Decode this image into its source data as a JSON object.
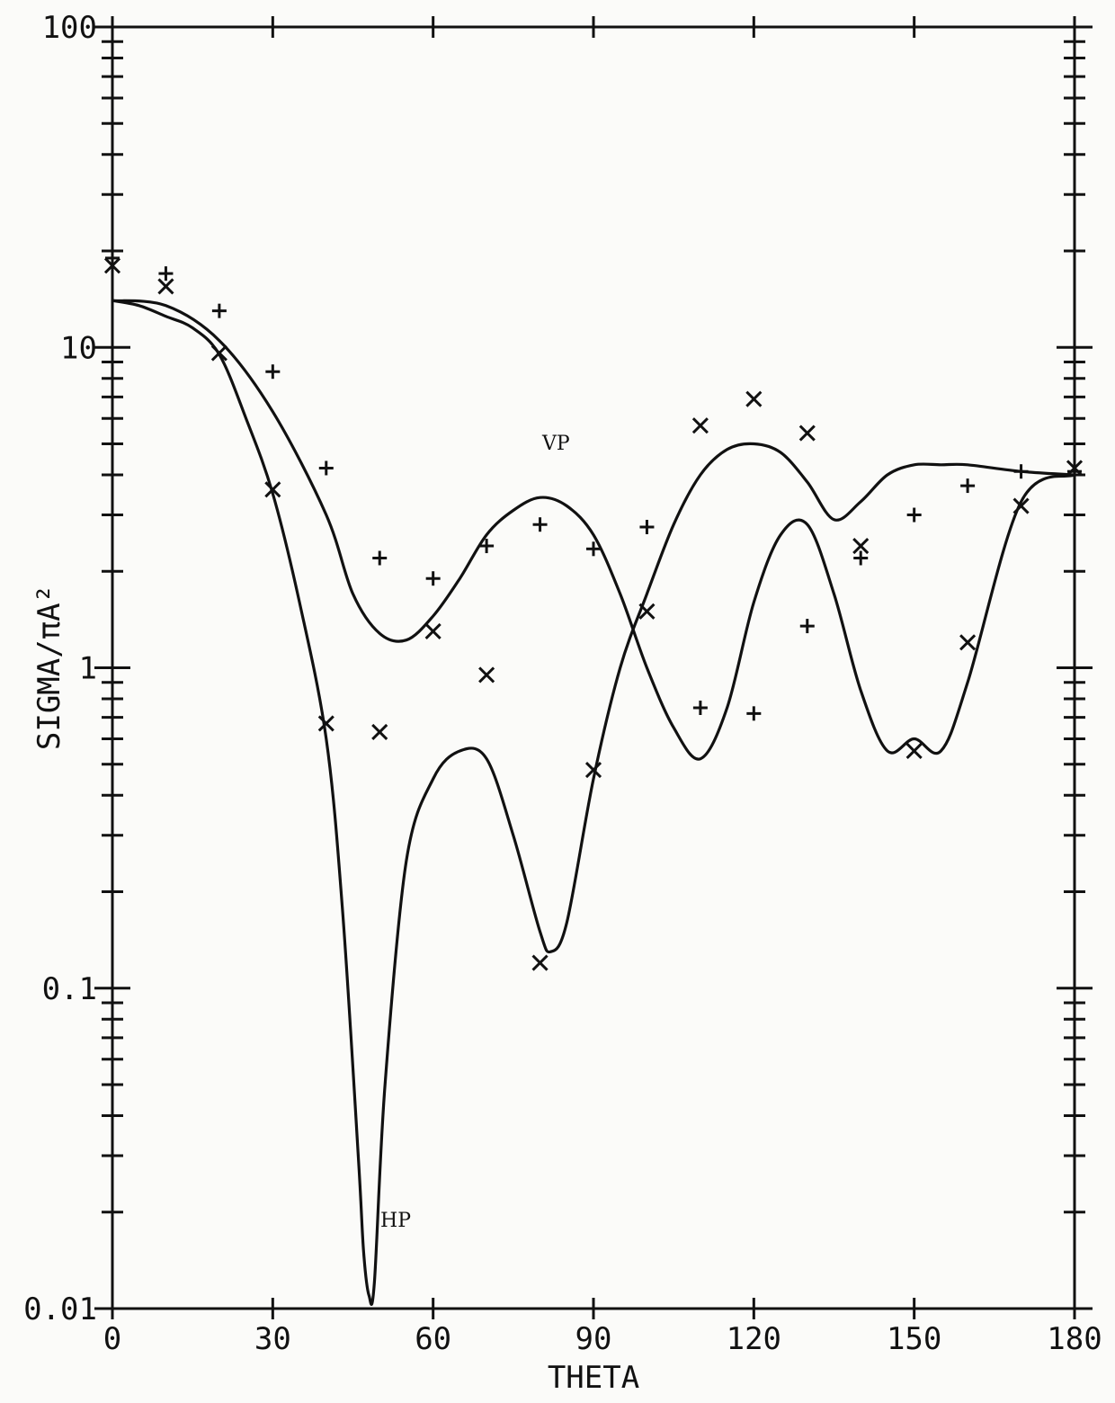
{
  "chart_data": {
    "type": "line",
    "xlabel": "THETA",
    "ylabel": "SIGMA/πA²",
    "xlim": [
      0,
      180
    ],
    "ylim": [
      0.01,
      100
    ],
    "y_scale": "log",
    "grid": false,
    "x_ticks": [
      0,
      30,
      60,
      90,
      120,
      150,
      180
    ],
    "x_tick_labels": [
      "0",
      "30",
      "60",
      "90",
      "120",
      "150",
      "180"
    ],
    "y_ticks": [
      0.01,
      0.1,
      1,
      10,
      100
    ],
    "y_tick_labels": [
      "0.01",
      "0.1",
      "1",
      "10",
      "100"
    ],
    "line_color": "#111111",
    "series": [
      {
        "name": "VP",
        "kind": "line",
        "x": [
          0,
          10,
          20,
          30,
          40,
          45,
          50,
          55,
          60,
          65,
          70,
          75,
          80,
          85,
          90,
          95,
          100,
          105,
          110,
          115,
          120,
          125,
          130,
          135,
          140,
          145,
          150,
          155,
          160,
          170,
          180
        ],
        "y": [
          14,
          13.5,
          10.5,
          6.3,
          3.0,
          1.7,
          1.28,
          1.22,
          1.45,
          1.9,
          2.6,
          3.1,
          3.4,
          3.2,
          2.6,
          1.7,
          1.0,
          0.65,
          0.52,
          0.75,
          1.6,
          2.6,
          2.8,
          1.7,
          0.85,
          0.55,
          0.6,
          0.55,
          0.9,
          3.3,
          4.0
        ]
      },
      {
        "name": "HP",
        "kind": "line",
        "x": [
          0,
          5,
          10,
          15,
          20,
          25,
          30,
          35,
          40,
          43,
          46,
          47,
          48,
          49,
          51,
          55,
          60,
          65,
          70,
          75,
          80,
          82,
          85,
          90,
          95,
          100,
          105,
          110,
          115,
          120,
          125,
          130,
          135,
          140,
          145,
          150,
          155,
          160,
          170,
          180
        ],
        "y": [
          14,
          13.5,
          12.5,
          11.5,
          9.5,
          6.0,
          3.5,
          1.6,
          0.6,
          0.18,
          0.03,
          0.015,
          0.011,
          0.012,
          0.05,
          0.25,
          0.45,
          0.55,
          0.52,
          0.3,
          0.15,
          0.13,
          0.16,
          0.45,
          1.0,
          1.7,
          2.8,
          4.0,
          4.8,
          5.0,
          4.7,
          3.8,
          2.9,
          3.3,
          4.0,
          4.3,
          4.3,
          4.3,
          4.1,
          4.0
        ]
      },
      {
        "name": "",
        "kind": "marker",
        "marker": "plus",
        "x": [
          0,
          10,
          20,
          30,
          40,
          50,
          60,
          70,
          80,
          90,
          100,
          110,
          120,
          130,
          140,
          150,
          160,
          170,
          180
        ],
        "y": [
          19,
          17,
          13,
          8.4,
          4.2,
          2.2,
          1.9,
          2.4,
          2.8,
          2.35,
          2.75,
          0.75,
          0.72,
          1.35,
          2.2,
          3.0,
          3.7,
          4.1,
          4.1
        ]
      },
      {
        "name": "",
        "kind": "marker",
        "marker": "cross",
        "x": [
          0,
          10,
          20,
          30,
          40,
          50,
          60,
          70,
          80,
          90,
          100,
          110,
          120,
          130,
          140,
          150,
          160,
          170,
          180
        ],
        "y": [
          18,
          15.5,
          9.6,
          3.6,
          0.67,
          0.63,
          1.3,
          0.95,
          0.12,
          0.48,
          1.5,
          5.7,
          6.9,
          5.4,
          2.4,
          0.55,
          1.2,
          3.2,
          4.2
        ]
      }
    ],
    "annotations": [
      {
        "text": "VP",
        "x": 83,
        "y": 4.8
      },
      {
        "text": "HP",
        "x": 53,
        "y": 0.018
      }
    ]
  }
}
